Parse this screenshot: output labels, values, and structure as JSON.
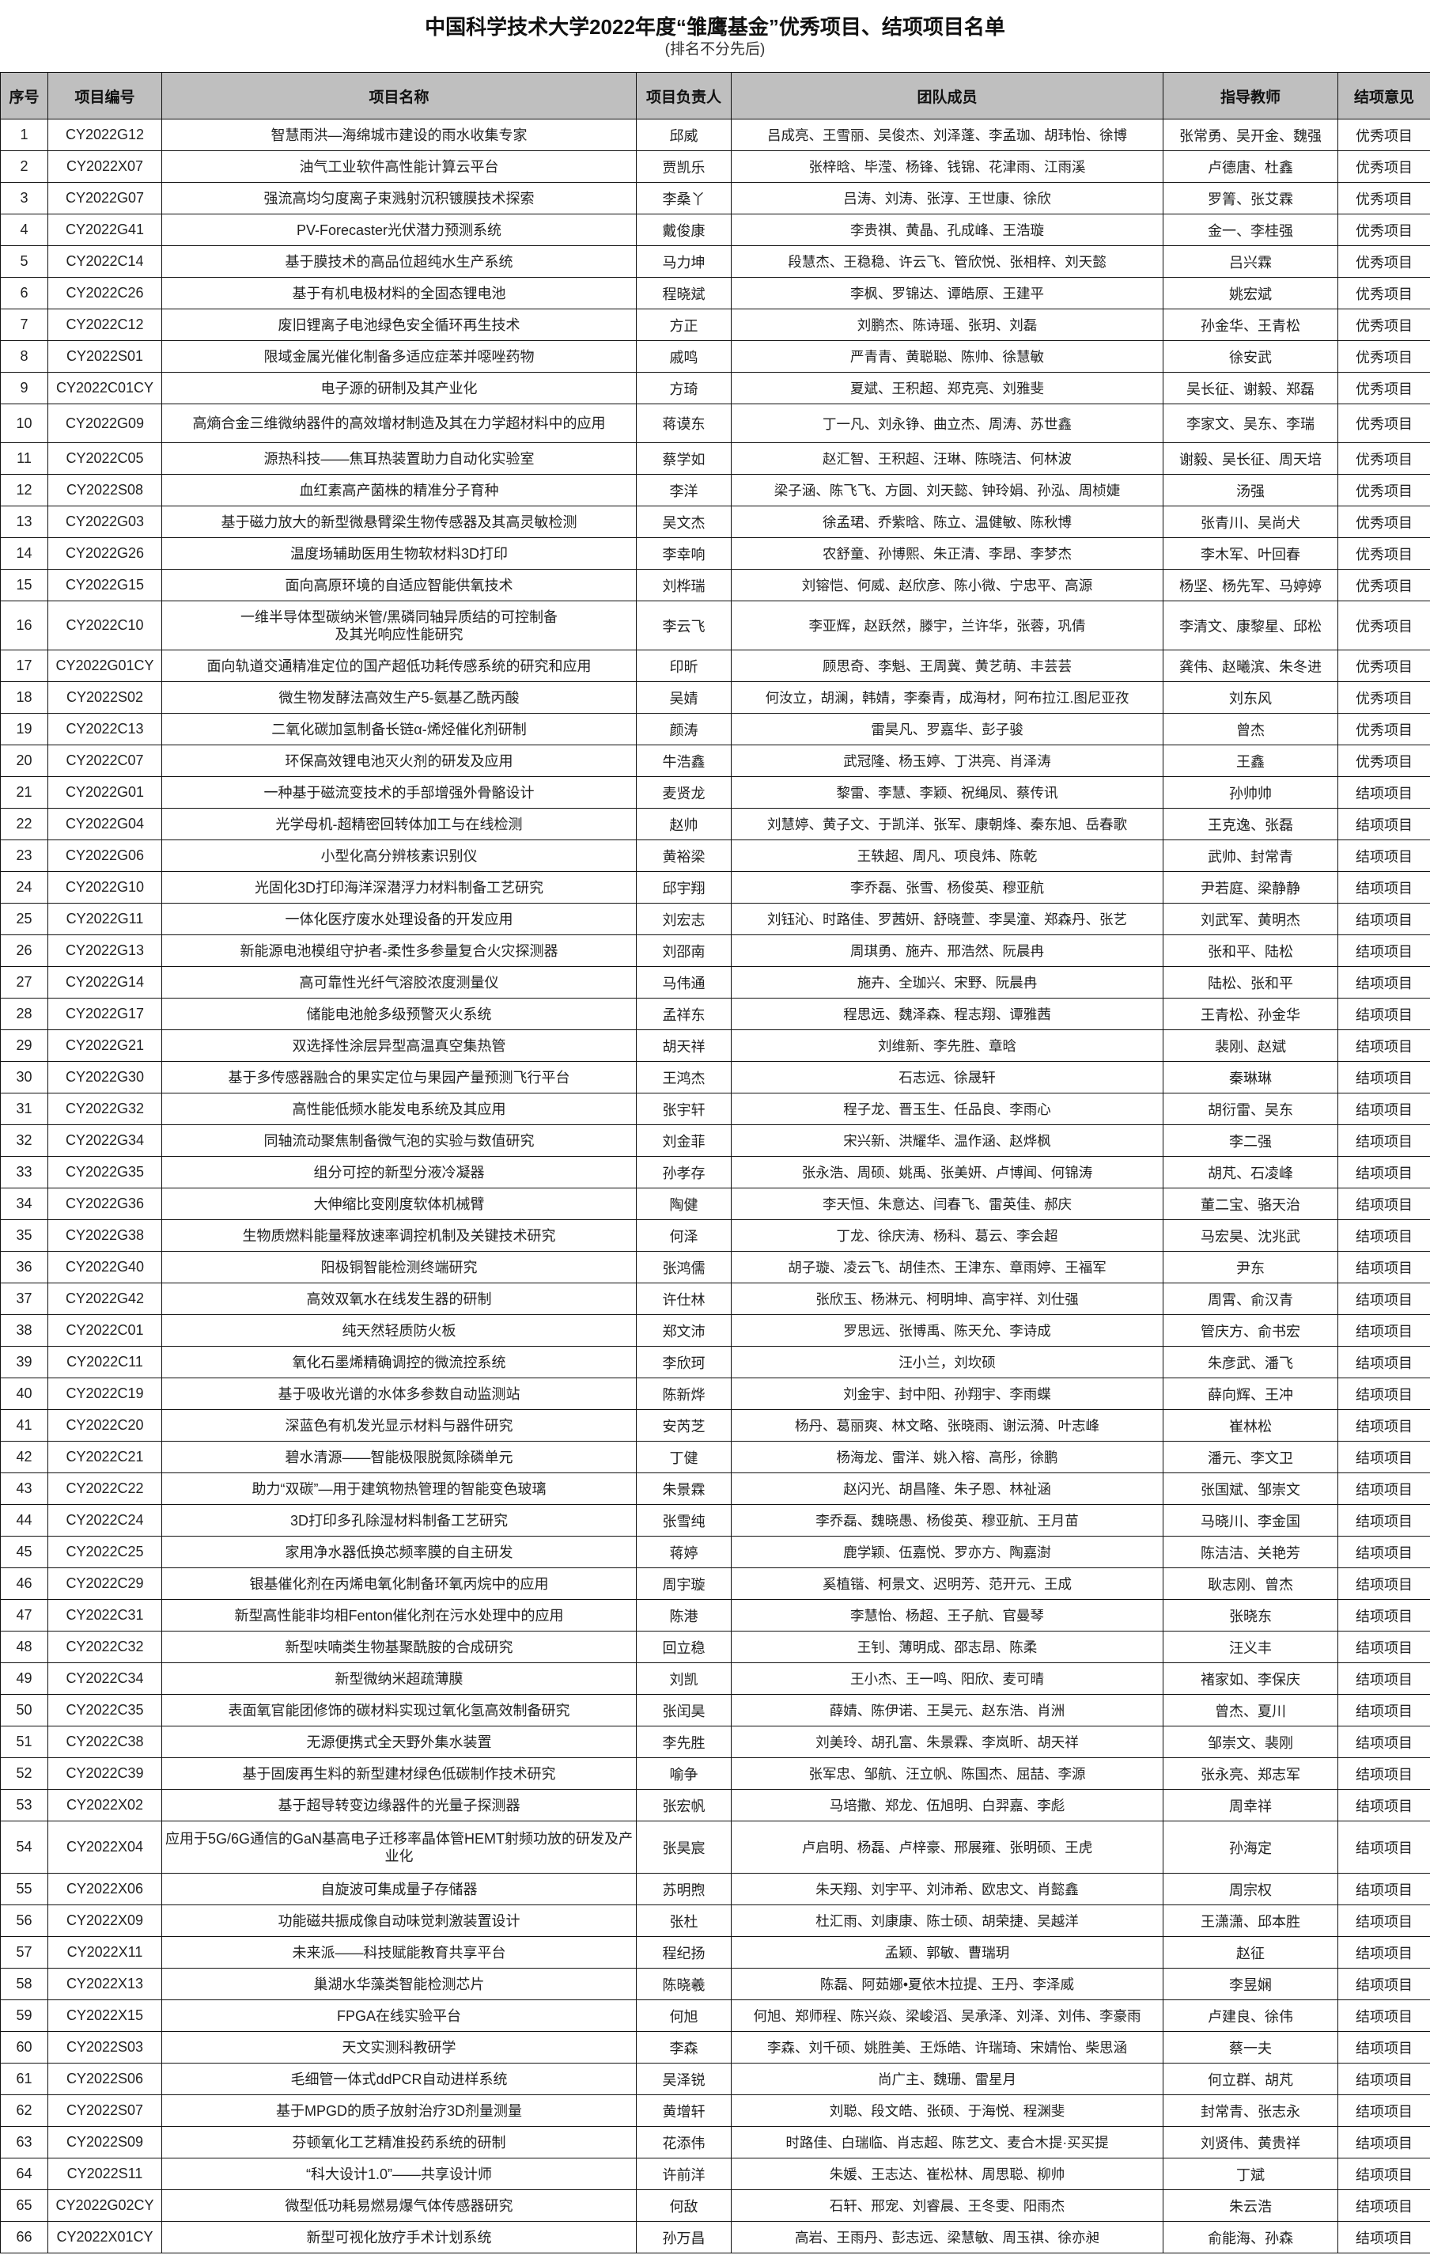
{
  "title": "中国科学技术大学2022年度“雏鹰基金”优秀项目、结项项目名单",
  "subtitle": "(排名不分先后)",
  "headers": [
    "序号",
    "项目编号",
    "项目名称",
    "项目负责人",
    "团队成员",
    "指导教师",
    "结项意见"
  ],
  "rows": [
    {
      "no": "1",
      "code": "CY2022G12",
      "name": "智慧雨洪—海绵城市建设的雨水收集专家",
      "leader": "邱威",
      "members": "吕成亮、王雪丽、吴俊杰、刘泽蓬、李孟珈、胡玮怡、徐博",
      "advisor": "张常勇、吴开金、魏强",
      "result": "优秀项目"
    },
    {
      "no": "2",
      "code": "CY2022X07",
      "name": "油气工业软件高性能计算云平台",
      "leader": "贾凯乐",
      "members": "张梓晗、毕滢、杨锋、钱锦、花津雨、江雨溪",
      "advisor": "卢德唐、杜鑫",
      "result": "优秀项目"
    },
    {
      "no": "3",
      "code": "CY2022G07",
      "name": "强流高均匀度离子束溅射沉积镀膜技术探索",
      "leader": "李桑丫",
      "members": "吕涛、刘涛、张淳、王世康、徐欣",
      "advisor": "罗箐、张艾霖",
      "result": "优秀项目"
    },
    {
      "no": "4",
      "code": "CY2022G41",
      "name": "PV-Forecaster光伏潜力预测系统",
      "leader": "戴俊康",
      "members": "李贵祺、黄晶、孔成峰、王浩璇",
      "advisor": "金一、李桂强",
      "result": "优秀项目"
    },
    {
      "no": "5",
      "code": "CY2022C14",
      "name": "基于膜技术的高品位超纯水生产系统",
      "leader": "马力坤",
      "members": "段慧杰、王稳稳、许云飞、管欣悦、张相梓、刘天懿",
      "advisor": "吕兴霖",
      "result": "优秀项目"
    },
    {
      "no": "6",
      "code": "CY2022C26",
      "name": "基于有机电极材料的全固态锂电池",
      "leader": "程晓斌",
      "members": "李枫、罗锦达、谭皓原、王建平",
      "advisor": "姚宏斌",
      "result": "优秀项目"
    },
    {
      "no": "7",
      "code": "CY2022C12",
      "name": "废旧锂离子电池绿色安全循环再生技术",
      "leader": "方正",
      "members": "刘鹏杰、陈诗瑶、张玥、刘磊",
      "advisor": "孙金华、王青松",
      "result": "优秀项目"
    },
    {
      "no": "8",
      "code": "CY2022S01",
      "name": "限域金属光催化制备多适应症苯并噁唑药物",
      "leader": "戚鸣",
      "members": "严青青、黄聪聪、陈帅、徐慧敏",
      "advisor": "徐安武",
      "result": "优秀项目"
    },
    {
      "no": "9",
      "code": "CY2022C01CY",
      "name": "电子源的研制及其产业化",
      "leader": "方琦",
      "members": "夏斌、王积超、郑克亮、刘雅斐",
      "advisor": "吴长征、谢毅、郑磊",
      "result": "优秀项目"
    },
    {
      "no": "10",
      "code": "CY2022G09",
      "name": "高熵合金三维微纳器件的高效增材制造及其在力学超材料中的应用",
      "leader": "蒋谟东",
      "members": "丁一凡、刘永铮、曲立杰、周涛、苏世鑫",
      "advisor": "李家文、吴东、李瑞",
      "result": "优秀项目"
    },
    {
      "no": "11",
      "code": "CY2022C05",
      "name": "源热科技——焦耳热装置助力自动化实验室",
      "leader": "蔡学如",
      "members": "赵汇智、王积超、汪琳、陈晓洁、何林波",
      "advisor": "谢毅、吴长征、周天培",
      "result": "优秀项目"
    },
    {
      "no": "12",
      "code": "CY2022S08",
      "name": "血红素高产菌株的精准分子育种",
      "leader": "李洋",
      "members": "梁子涵、陈飞飞、方圆、刘天懿、钟玲娟、孙泓、周桢婕",
      "advisor": "汤强",
      "result": "优秀项目"
    },
    {
      "no": "13",
      "code": "CY2022G03",
      "name": "基于磁力放大的新型微悬臂梁生物传感器及其高灵敏检测",
      "leader": "吴文杰",
      "members": "徐孟珺、乔紫晗、陈立、温健敏、陈秋博",
      "advisor": "张青川、吴尚犬",
      "result": "优秀项目"
    },
    {
      "no": "14",
      "code": "CY2022G26",
      "name": "温度场辅助医用生物软材料3D打印",
      "leader": "李幸响",
      "members": "农舒童、孙博熙、朱正清、李昂、李梦杰",
      "advisor": "李木军、叶回春",
      "result": "优秀项目"
    },
    {
      "no": "15",
      "code": "CY2022G15",
      "name": "面向高原环境的自适应智能供氧技术",
      "leader": "刘桦瑞",
      "members": "刘镕恺、何威、赵欣彦、陈小微、宁忠平、高源",
      "advisor": "杨坚、杨先军、马婷婷",
      "result": "优秀项目"
    },
    {
      "no": "16",
      "code": "CY2022C10",
      "name": "一维半导体型碳纳米管/黑磷同轴异质结的可控制备\n及其光响应性能研究",
      "leader": "李云飞",
      "members": "李亚辉，赵跃然，滕宇，兰许华，张蓉，巩倩",
      "advisor": "李清文、康黎星、邱松",
      "result": "优秀项目"
    },
    {
      "no": "17",
      "code": "CY2022G01CY",
      "name": "面向轨道交通精准定位的国产超低功耗传感系统的研究和应用",
      "leader": "印昕",
      "members": "顾思奇、李魁、王周冀、黄艺萌、丰芸芸",
      "advisor": "龚伟、赵曦滨、朱冬进",
      "result": "优秀项目"
    },
    {
      "no": "18",
      "code": "CY2022S02",
      "name": "微生物发酵法高效生产5-氨基乙酰丙酸",
      "leader": "吴婧",
      "members": "何汝立，胡澜，韩婧，李秦青，成海材，阿布拉江.图尼亚孜",
      "advisor": "刘东风",
      "result": "优秀项目"
    },
    {
      "no": "19",
      "code": "CY2022C13",
      "name": "二氧化碳加氢制备长链α-烯烃催化剂研制",
      "leader": "颜涛",
      "members": "雷昊凡、罗嘉华、彭子骏",
      "advisor": "曾杰",
      "result": "优秀项目"
    },
    {
      "no": "20",
      "code": "CY2022C07",
      "name": "环保高效锂电池灭火剂的研发及应用",
      "leader": "牛浩鑫",
      "members": "武冠隆、杨玉婷、丁洪亮、肖泽涛",
      "advisor": "王鑫",
      "result": "优秀项目"
    },
    {
      "no": "21",
      "code": "CY2022G01",
      "name": "一种基于磁流变技术的手部增强外骨骼设计",
      "leader": "麦贤龙",
      "members": "黎雷、李慧、李颖、祝绳凤、蔡传讯",
      "advisor": "孙帅帅",
      "result": "结项项目"
    },
    {
      "no": "22",
      "code": "CY2022G04",
      "name": "光学母机-超精密回转体加工与在线检测",
      "leader": "赵帅",
      "members": "刘慧婷、黄子文、于凯洋、张军、康朝烽、秦东旭、岳春歌",
      "advisor": "王克逸、张磊",
      "result": "结项项目"
    },
    {
      "no": "23",
      "code": "CY2022G06",
      "name": "小型化高分辨核素识别仪",
      "leader": "黄裕梁",
      "members": "王轶超、周凡、项良炜、陈乾",
      "advisor": "武帅、封常青",
      "result": "结项项目"
    },
    {
      "no": "24",
      "code": "CY2022G10",
      "name": "光固化3D打印海洋深潜浮力材料制备工艺研究",
      "leader": "邱宇翔",
      "members": "李乔磊、张雪、杨俊英、穆亚航",
      "advisor": "尹若庭、梁静静",
      "result": "结项项目"
    },
    {
      "no": "25",
      "code": "CY2022G11",
      "name": "一体化医疗废水处理设备的开发应用",
      "leader": "刘宏志",
      "members": "刘钰沁、时路佳、罗茜妍、舒晓萱、李昊潼、郑森丹、张艺",
      "advisor": "刘武军、黄明杰",
      "result": "结项项目"
    },
    {
      "no": "26",
      "code": "CY2022G13",
      "name": "新能源电池模组守护者-柔性多参量复合火灾探测器",
      "leader": "刘邵南",
      "members": "周琪勇、施卉、邢浩然、阮晨冉",
      "advisor": "张和平、陆松",
      "result": "结项项目"
    },
    {
      "no": "27",
      "code": "CY2022G14",
      "name": "高可靠性光纤气溶胶浓度测量仪",
      "leader": "马伟通",
      "members": "施卉、全珈兴、宋野、阮晨冉",
      "advisor": "陆松、张和平",
      "result": "结项项目"
    },
    {
      "no": "28",
      "code": "CY2022G17",
      "name": "储能电池舱多级预警灭火系统",
      "leader": "孟祥东",
      "members": "程思远、魏泽森、程志翔、谭雅茜",
      "advisor": "王青松、孙金华",
      "result": "结项项目"
    },
    {
      "no": "29",
      "code": "CY2022G21",
      "name": "双选择性涂层异型高温真空集热管",
      "leader": "胡天祥",
      "members": "刘维新、李先胜、章晗",
      "advisor": "裴刚、赵斌",
      "result": "结项项目"
    },
    {
      "no": "30",
      "code": "CY2022G30",
      "name": "基于多传感器融合的果实定位与果园产量预测飞行平台",
      "leader": "王鸿杰",
      "members": "石志远、徐晟轩",
      "advisor": "秦琳琳",
      "result": "结项项目"
    },
    {
      "no": "31",
      "code": "CY2022G32",
      "name": "高性能低频水能发电系统及其应用",
      "leader": "张宇轩",
      "members": "程子龙、晋玉生、任品良、李雨心",
      "advisor": "胡衍雷、吴东",
      "result": "结项项目"
    },
    {
      "no": "32",
      "code": "CY2022G34",
      "name": "同轴流动聚焦制备微气泡的实验与数值研究",
      "leader": "刘金菲",
      "members": "宋兴新、洪耀华、温作涵、赵烨枫",
      "advisor": "李二强",
      "result": "结项项目"
    },
    {
      "no": "33",
      "code": "CY2022G35",
      "name": "组分可控的新型分液冷凝器",
      "leader": "孙孝存",
      "members": "张永浩、周硕、姚禹、张美妍、卢博闻、何锦涛",
      "advisor": "胡芃、石凌峰",
      "result": "结项项目"
    },
    {
      "no": "34",
      "code": "CY2022G36",
      "name": "大伸缩比变刚度软体机械臂",
      "leader": "陶健",
      "members": "李天恒、朱意达、闫春飞、雷英佳、郝庆",
      "advisor": "董二宝、骆天治",
      "result": "结项项目"
    },
    {
      "no": "35",
      "code": "CY2022G38",
      "name": "生物质燃料能量释放速率调控机制及关键技术研究",
      "leader": "何泽",
      "members": "丁龙、徐庆涛、杨科、葛云、李会超",
      "advisor": "马宏昊、沈兆武",
      "result": "结项项目"
    },
    {
      "no": "36",
      "code": "CY2022G40",
      "name": "阳极铜智能检测终端研究",
      "leader": "张鸿儒",
      "members": "胡子璇、凌云飞、胡佳杰、王津东、章雨婷、王福军",
      "advisor": "尹东",
      "result": "结项项目"
    },
    {
      "no": "37",
      "code": "CY2022G42",
      "name": "高效双氧水在线发生器的研制",
      "leader": "许仕林",
      "members": "张欣玉、杨淋元、柯明坤、高宇祥、刘仕强",
      "advisor": "周霄、俞汉青",
      "result": "结项项目"
    },
    {
      "no": "38",
      "code": "CY2022C01",
      "name": "纯天然轻质防火板",
      "leader": "郑文沛",
      "members": "罗思远、张博禹、陈天允、李诗成",
      "advisor": "管庆方、俞书宏",
      "result": "结项项目"
    },
    {
      "no": "39",
      "code": "CY2022C11",
      "name": "氧化石墨烯精确调控的微流控系统",
      "leader": "李欣珂",
      "members": "汪小兰，刘坎硕",
      "advisor": "朱彦武、潘飞",
      "result": "结项项目"
    },
    {
      "no": "40",
      "code": "CY2022C19",
      "name": "基于吸收光谱的水体多参数自动监测站",
      "leader": "陈新烨",
      "members": "刘金宇、封中阳、孙翔宇、李雨蝶",
      "advisor": "薛向辉、王冲",
      "result": "结项项目"
    },
    {
      "no": "41",
      "code": "CY2022C20",
      "name": "深蓝色有机发光显示材料与器件研究",
      "leader": "安芮芝",
      "members": "杨丹、葛丽爽、林文略、张晓雨、谢沄漪、叶志峰",
      "advisor": "崔林松",
      "result": "结项项目"
    },
    {
      "no": "42",
      "code": "CY2022C21",
      "name": "碧水清源——智能极限脱氮除磷单元",
      "leader": "丁健",
      "members": "杨海龙、雷洋、姚入榕、高彤，徐鹏",
      "advisor": "潘元、李文卫",
      "result": "结项项目"
    },
    {
      "no": "43",
      "code": "CY2022C22",
      "name": "助力“双碳”—用于建筑物热管理的智能变色玻璃",
      "leader": "朱景霖",
      "members": "赵闪光、胡昌隆、朱子恩、林祉涵",
      "advisor": "张国斌、邹崇文",
      "result": "结项项目"
    },
    {
      "no": "44",
      "code": "CY2022C24",
      "name": "3D打印多孔除湿材料制备工艺研究",
      "leader": "张雪纯",
      "members": "李乔磊、魏晓愚、杨俊英、穆亚航、王月苗",
      "advisor": "马晓川、李金国",
      "result": "结项项目"
    },
    {
      "no": "45",
      "code": "CY2022C25",
      "name": "家用净水器低换芯频率膜的自主研发",
      "leader": "蒋婷",
      "members": "鹿学颖、伍嘉悦、罗亦方、陶嘉澍",
      "advisor": "陈洁洁、关艳芳",
      "result": "结项项目"
    },
    {
      "no": "46",
      "code": "CY2022C29",
      "name": "银基催化剂在丙烯电氧化制备环氧丙烷中的应用",
      "leader": "周宇璇",
      "members": "奚植锴、柯景文、迟明芳、范开元、王成",
      "advisor": "耿志刚、曾杰",
      "result": "结项项目"
    },
    {
      "no": "47",
      "code": "CY2022C31",
      "name": "新型高性能非均相Fenton催化剂在污水处理中的应用",
      "leader": "陈港",
      "members": "李慧怡、杨超、王子航、官曼琴",
      "advisor": "张晓东",
      "result": "结项项目"
    },
    {
      "no": "48",
      "code": "CY2022C32",
      "name": "新型呋喃类生物基聚酰胺的合成研究",
      "leader": "回立稳",
      "members": "王钊、薄明成、邵志昂、陈柔",
      "advisor": "汪义丰",
      "result": "结项项目"
    },
    {
      "no": "49",
      "code": "CY2022C34",
      "name": "新型微纳米超疏薄膜",
      "leader": "刘凯",
      "members": "王小杰、王一鸣、阳欣、麦可晴",
      "advisor": "褚家如、李保庆",
      "result": "结项项目"
    },
    {
      "no": "50",
      "code": "CY2022C35",
      "name": "表面氧官能团修饰的碳材料实现过氧化氢高效制备研究",
      "leader": "张闰昊",
      "members": "薛婧、陈伊诺、王昊元、赵东浩、肖洲",
      "advisor": "曾杰、夏川",
      "result": "结项项目"
    },
    {
      "no": "51",
      "code": "CY2022C38",
      "name": "无源便携式全天野外集水装置",
      "leader": "李先胜",
      "members": "刘美玲、胡孔富、朱景霖、李岚昕、胡天祥",
      "advisor": "邹崇文、裴刚",
      "result": "结项项目"
    },
    {
      "no": "52",
      "code": "CY2022C39",
      "name": "基于固废再生料的新型建材绿色低碳制作技术研究",
      "leader": "喻争",
      "members": "张军忠、邹航、汪立帆、陈国杰、屈喆、李源",
      "advisor": "张永亮、郑志军",
      "result": "结项项目"
    },
    {
      "no": "53",
      "code": "CY2022X02",
      "name": "基于超导转变边缘器件的光量子探测器",
      "leader": "张宏帆",
      "members": "马培撒、郑龙、伍旭明、白羿嘉、李彪",
      "advisor": "周幸祥",
      "result": "结项项目"
    },
    {
      "no": "54",
      "code": "CY2022X04",
      "name": "应用于5G/6G通信的GaN基高电子迁移率晶体管HEMT射频功放的研发及产业化",
      "leader": "张昊宸",
      "members": "卢启明、杨磊、卢梓豪、邢展雍、张明硕、王虎",
      "advisor": "孙海定",
      "result": "结项项目"
    },
    {
      "no": "55",
      "code": "CY2022X06",
      "name": "自旋波可集成量子存储器",
      "leader": "苏明煦",
      "members": "朱天翔、刘宇平、刘沛希、欧忠文、肖懿鑫",
      "advisor": "周宗权",
      "result": "结项项目"
    },
    {
      "no": "56",
      "code": "CY2022X09",
      "name": "功能磁共振成像自动味觉刺激装置设计",
      "leader": "张杜",
      "members": "杜汇雨、刘康康、陈士硕、胡荣捷、吴越洋",
      "advisor": "王潇潇、邱本胜",
      "result": "结项项目"
    },
    {
      "no": "57",
      "code": "CY2022X11",
      "name": "未来派——科技赋能教育共享平台",
      "leader": "程纪扬",
      "members": "孟颖、郭敏、曹瑞玥",
      "advisor": "赵征",
      "result": "结项项目"
    },
    {
      "no": "58",
      "code": "CY2022X13",
      "name": "巢湖水华藻类智能检测芯片",
      "leader": "陈晓羲",
      "members": "陈磊、阿茹娜•夏依木拉提、王丹、李泽威",
      "advisor": "李昱娴",
      "result": "结项项目"
    },
    {
      "no": "59",
      "code": "CY2022X15",
      "name": "FPGA在线实验平台",
      "leader": "何旭",
      "members": "何旭、郑师程、陈兴焱、梁峻滔、吴承泽、刘泽、刘伟、李豪雨",
      "advisor": "卢建良、徐伟",
      "result": "结项项目"
    },
    {
      "no": "60",
      "code": "CY2022S03",
      "name": "天文实测科教研学",
      "leader": "李森",
      "members": "李森、刘千硕、姚胜美、王烁皓、许瑞琦、宋婧怡、柴思涵",
      "advisor": "蔡一夫",
      "result": "结项项目"
    },
    {
      "no": "61",
      "code": "CY2022S06",
      "name": "毛细管一体式ddPCR自动进样系统",
      "leader": "吴泽锐",
      "members": "尚广主、魏珊、雷星月",
      "advisor": "何立群、胡芃",
      "result": "结项项目"
    },
    {
      "no": "62",
      "code": "CY2022S07",
      "name": "基于MPGD的质子放射治疗3D剂量测量",
      "leader": "黄增轩",
      "members": "刘聪、段文皓、张硕、于海悦、程渊斐",
      "advisor": "封常青、张志永",
      "result": "结项项目"
    },
    {
      "no": "63",
      "code": "CY2022S09",
      "name": "芬顿氧化工艺精准投药系统的研制",
      "leader": "花添伟",
      "members": "时路佳、白瑞临、肖志超、陈艺文、麦合木提·买买提",
      "advisor": "刘贤伟、黄贵祥",
      "result": "结项项目"
    },
    {
      "no": "64",
      "code": "CY2022S11",
      "name": "“科大设计1.0”——共享设计师",
      "leader": "许前洋",
      "members": "朱媛、王志达、崔松林、周思聪、柳帅",
      "advisor": "丁斌",
      "result": "结项项目"
    },
    {
      "no": "65",
      "code": "CY2022G02CY",
      "name": "微型低功耗易燃易爆气体传感器研究",
      "leader": "何敌",
      "members": "石轩、邢宠、刘睿晨、王冬雯、阳雨杰",
      "advisor": "朱云浩",
      "result": "结项项目"
    },
    {
      "no": "66",
      "code": "CY2022X01CY",
      "name": "新型可视化放疗手术计划系统",
      "leader": "孙万昌",
      "members": "高岩、王雨丹、彭志远、梁慧敏、周玉祺、徐亦昶",
      "advisor": "俞能海、孙森",
      "result": "结项项目"
    }
  ]
}
